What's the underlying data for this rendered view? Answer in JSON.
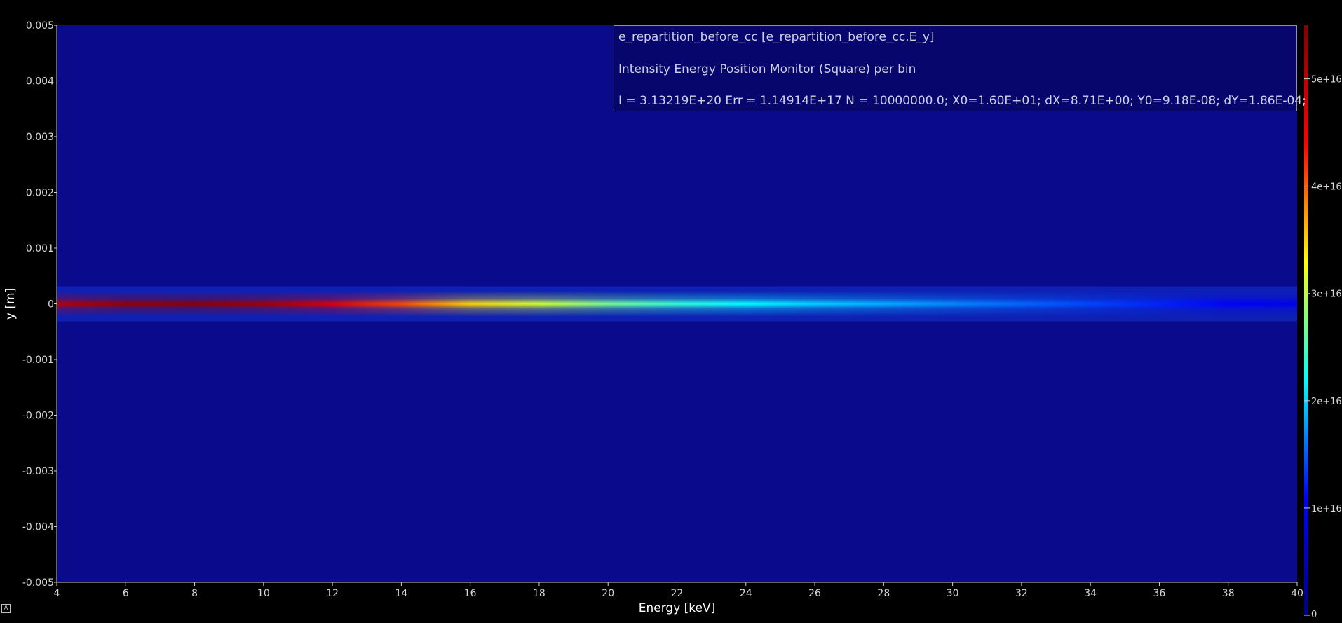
{
  "info": {
    "line1": "e_repartition_before_cc [e_repartition_before_cc.E_y]",
    "line2": "Intensity Energy Position Monitor (Square) per bin",
    "line3": "I = 3.13219E+20 Err = 1.14914E+17 N = 10000000.0; X0=1.60E+01; dX=8.71E+00; Y0=9.18E-08; dY=1.86E-04;"
  },
  "corner_icon": {
    "glyph": "A",
    "icon": "autoscale-icon"
  },
  "colors": {
    "background": "#000000",
    "plot_background": "#0a0a8c",
    "axis_text": "#d8d8d8"
  },
  "chart_data": {
    "type": "heatmap",
    "xlabel": "Energy [keV]",
    "ylabel": "y [m]",
    "xlim": [
      4,
      40
    ],
    "ylim": [
      -0.005,
      0.005
    ],
    "x_ticks": [
      4,
      6,
      8,
      10,
      12,
      14,
      16,
      18,
      20,
      22,
      24,
      26,
      28,
      30,
      32,
      34,
      36,
      38,
      40
    ],
    "x_tick_labels": [
      "4",
      "6",
      "8",
      "10",
      "12",
      "14",
      "16",
      "18",
      "20",
      "22",
      "24",
      "26",
      "28",
      "30",
      "32",
      "34",
      "36",
      "38",
      "40"
    ],
    "y_ticks": [
      0.005,
      0.004,
      0.003,
      0.002,
      0.001,
      0,
      -0.001,
      -0.002,
      -0.003,
      -0.004,
      -0.005
    ],
    "y_tick_labels": [
      "0.005",
      "0.004",
      "0.003",
      "0.002",
      "0.001",
      "0",
      "-0.001",
      "-0.002",
      "-0.003",
      "-0.004",
      "-0.005"
    ],
    "colorbar": {
      "min": 0,
      "max": 5.5e+16,
      "ticks": [
        0,
        1e+16,
        2e+16,
        3e+16,
        4e+16,
        5e+16
      ],
      "tick_labels": [
        "0",
        "1e+16",
        "2e+16",
        "3e+16",
        "4e+16",
        "5e+16"
      ],
      "colormap": [
        "#000080",
        "#0000ff",
        "#00ffff",
        "#ffff00",
        "#ff0000",
        "#800000"
      ]
    },
    "band": {
      "center_y": 9.18e-08,
      "sigma_y": 0.000186,
      "peak_intensity_by_energy": {
        "x": [
          4,
          6,
          8,
          10,
          12,
          14,
          16,
          18,
          20,
          22,
          24,
          26,
          28,
          30,
          32,
          34,
          36,
          38,
          40
        ],
        "values": [
          5e+16,
          5.3e+16,
          5.4e+16,
          5.2e+16,
          4.7e+16,
          4.1e+16,
          3.5e+16,
          3.1e+16,
          2.7e+16,
          2.4e+16,
          2.2e+16,
          2e+16,
          1.85e+16,
          1.7e+16,
          1.55e+16,
          1.4e+16,
          1.25e+16,
          1.1e+16,
          9500000000000000.0
        ]
      }
    }
  }
}
